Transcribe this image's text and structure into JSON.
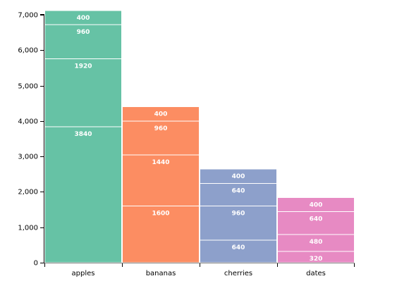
{
  "chart_data": {
    "type": "bar",
    "stacked": true,
    "categories": [
      "apples",
      "bananas",
      "cherries",
      "dates"
    ],
    "stacks": [
      [
        3840,
        1920,
        960,
        400
      ],
      [
        1600,
        1440,
        960,
        400
      ],
      [
        640,
        960,
        640,
        400
      ],
      [
        320,
        480,
        640,
        400
      ]
    ],
    "colors": [
      "#66c2a5",
      "#fc8d62",
      "#8da0cb",
      "#e78ac3"
    ],
    "ylim": [
      0,
      7000
    ],
    "yticks": [
      0,
      1000,
      2000,
      3000,
      4000,
      5000,
      6000,
      7000
    ],
    "ytick_labels": [
      "0",
      "1,000",
      "2,000",
      "3,000",
      "4,000",
      "5,000",
      "6,000",
      "7,000"
    ],
    "title": "",
    "xlabel": "",
    "ylabel": "",
    "grid": false
  }
}
